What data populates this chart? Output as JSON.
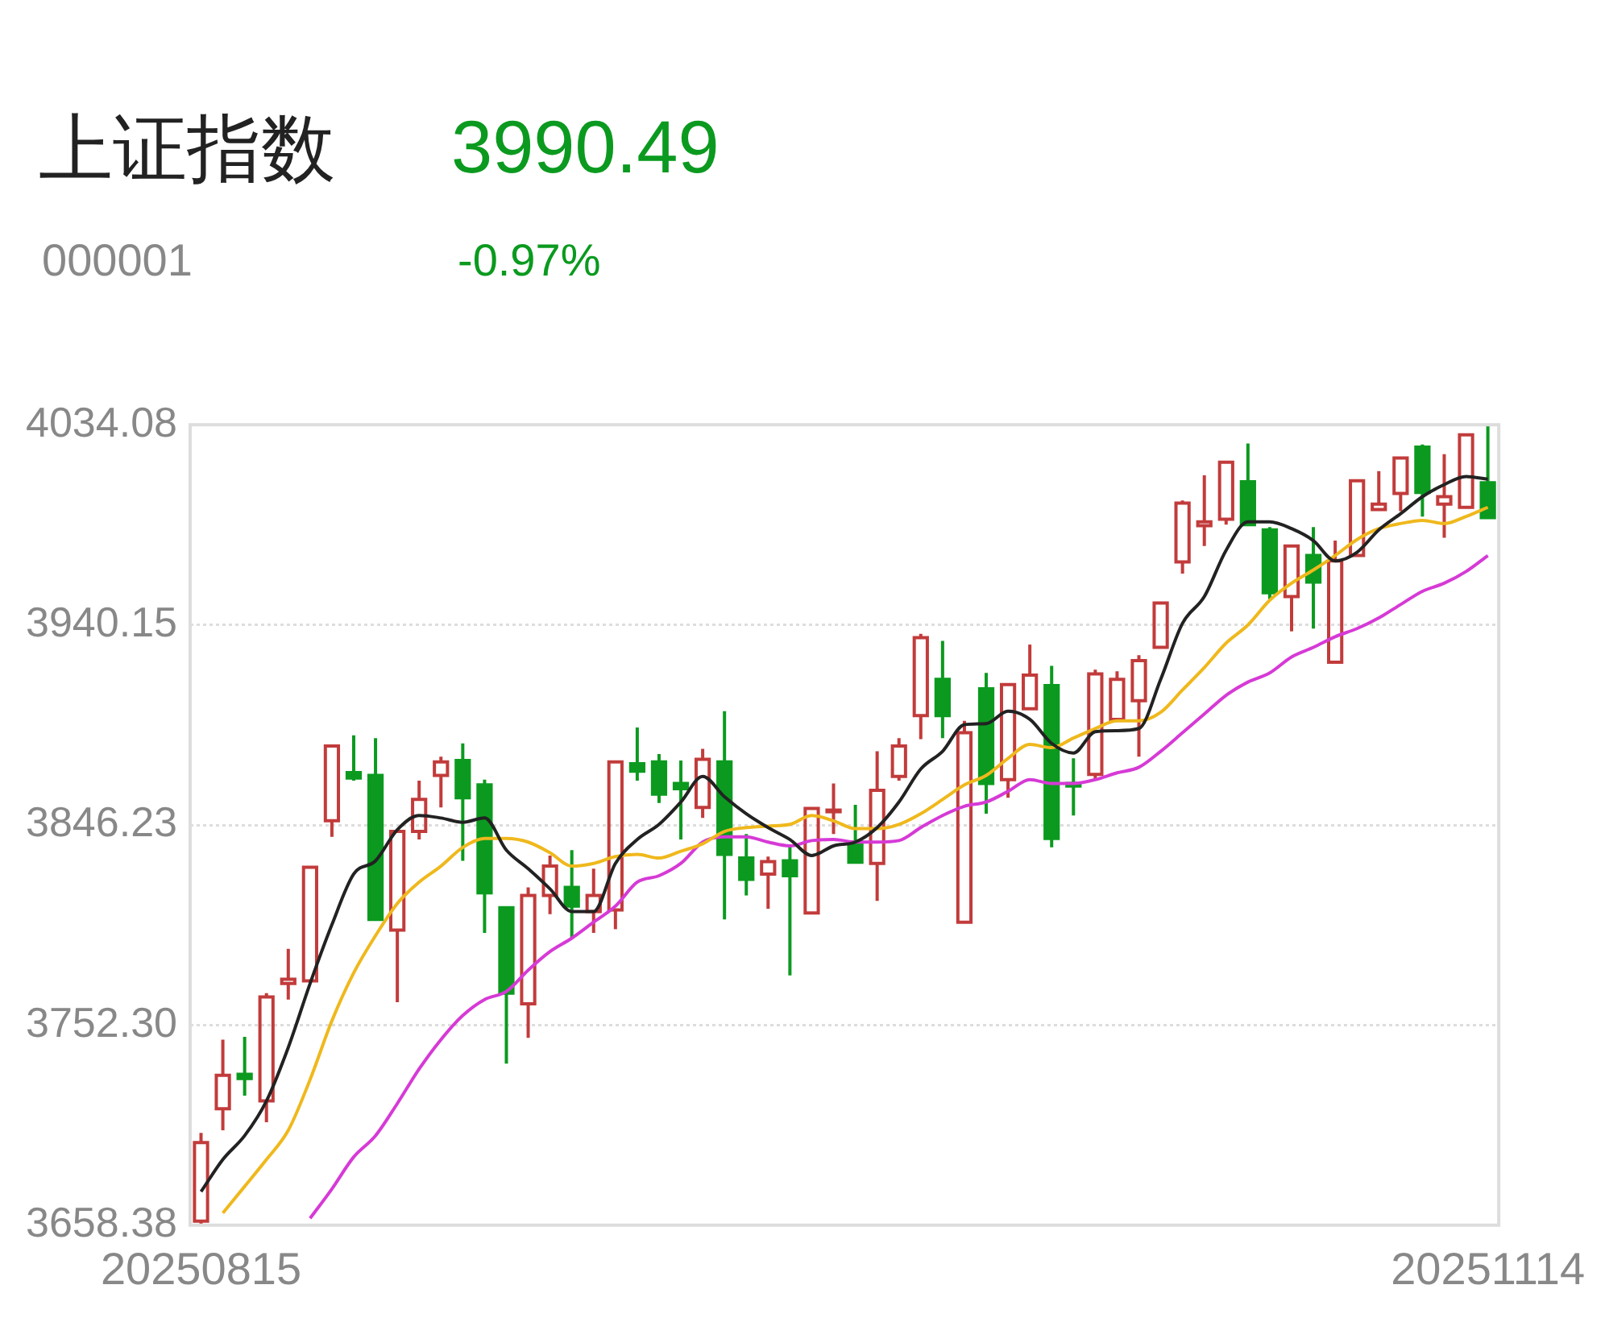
{
  "chart_data": {
    "type": "candlestick",
    "title": "上证指数",
    "subtitle": "000001",
    "annotations": [
      "3990.49",
      "-0.97%"
    ],
    "categories": [
      "20250815",
      null,
      null,
      null,
      null,
      null,
      null,
      null,
      null,
      null,
      null,
      null,
      null,
      null,
      null,
      null,
      null,
      null,
      null,
      null,
      null,
      null,
      null,
      null,
      null,
      null,
      null,
      null,
      null,
      null,
      null,
      null,
      null,
      null,
      null,
      null,
      null,
      null,
      null,
      null,
      null,
      null,
      null,
      null,
      null,
      null,
      null,
      null,
      null,
      null,
      null,
      null,
      null,
      null,
      null,
      null,
      null,
      null,
      null,
      "20251114"
    ],
    "ohlc": [
      [
        3660.3,
        3701.7,
        3659.1,
        3697.2
      ],
      [
        3713.0,
        3745.5,
        3702.9,
        3728.7
      ],
      [
        3729.2,
        3746.8,
        3719.2,
        3727.2
      ],
      [
        3716.7,
        3767.3,
        3706.7,
        3765.5
      ],
      [
        3771.8,
        3788.1,
        3764.3,
        3773.8
      ],
      [
        3773.1,
        3826.9,
        3772.3,
        3826.4
      ],
      [
        3848.2,
        3884.0,
        3840.7,
        3883.3
      ],
      [
        3870.8,
        3888.3,
        3867.0,
        3868.3
      ],
      [
        3869.5,
        3887.0,
        3801.4,
        3801.9
      ],
      [
        3796.9,
        3843.7,
        3763.0,
        3843.2
      ],
      [
        3843.2,
        3867.0,
        3839.4,
        3858.2
      ],
      [
        3869.5,
        3878.3,
        3854.5,
        3875.8
      ],
      [
        3876.5,
        3884.5,
        3829.4,
        3859.0
      ],
      [
        3865.0,
        3867.5,
        3795.6,
        3814.4
      ],
      [
        3807.4,
        3807.9,
        3734.2,
        3767.3
      ],
      [
        3762.3,
        3816.9,
        3746.3,
        3813.1
      ],
      [
        3813.1,
        3831.9,
        3804.4,
        3826.9
      ],
      [
        3816.9,
        3834.4,
        3793.1,
        3808.1
      ],
      [
        3805.6,
        3825.7,
        3795.6,
        3813.1
      ],
      [
        3806.3,
        3875.8,
        3797.3,
        3875.8
      ],
      [
        3875.0,
        3892.0,
        3867.0,
        3871.5
      ],
      [
        3875.8,
        3879.5,
        3856.5,
        3860.7
      ],
      [
        3865.7,
        3876.5,
        3839.4,
        3863.2
      ],
      [
        3854.5,
        3882.0,
        3849.5,
        3877.0
      ],
      [
        3875.8,
        3899.6,
        3801.9,
        3832.4
      ],
      [
        3830.7,
        3842.0,
        3813.1,
        3820.7
      ],
      [
        3823.2,
        3831.4,
        3806.9,
        3829.0
      ],
      [
        3829.4,
        3836.9,
        3775.6,
        3822.4
      ],
      [
        3804.9,
        3854.5,
        3804.4,
        3854.0
      ],
      [
        3852.5,
        3865.7,
        3842.0,
        3853.2
      ],
      [
        3838.2,
        3855.7,
        3828.2,
        3828.7
      ],
      [
        3828.2,
        3880.8,
        3810.6,
        3862.5
      ],
      [
        3869.0,
        3887.0,
        3867.0,
        3883.3
      ],
      [
        3897.6,
        3935.9,
        3886.5,
        3934.1
      ],
      [
        3914.6,
        3932.6,
        3887.0,
        3897.6
      ],
      [
        3800.6,
        3895.1,
        3800.1,
        3889.5
      ],
      [
        3910.1,
        3917.6,
        3851.5,
        3865.7
      ],
      [
        3867.5,
        3912.1,
        3859.0,
        3912.1
      ],
      [
        3900.8,
        3930.9,
        3900.8,
        3916.6
      ],
      [
        3911.6,
        3920.9,
        3835.7,
        3839.9
      ],
      [
        3865.7,
        3877.5,
        3850.7,
        3864.5
      ],
      [
        3870.0,
        3919.1,
        3867.5,
        3917.1
      ],
      [
        3895.8,
        3918.4,
        3894.6,
        3914.6
      ],
      [
        3904.6,
        3925.9,
        3878.3,
        3923.4
      ],
      [
        3929.6,
        3950.9,
        3929.1,
        3950.4
      ],
      [
        3969.7,
        3998.5,
        3964.2,
        3997.3
      ],
      [
        3986.7,
        4010.3,
        3977.2,
        3988.5
      ],
      [
        3989.7,
        4016.5,
        3987.2,
        4016.5
      ],
      [
        4007.3,
        4025.3,
        3986.7,
        3987.2
      ],
      [
        3984.7,
        3986.0,
        3952.2,
        3955.2
      ],
      [
        3953.4,
        3977.2,
        3937.1,
        3977.2
      ],
      [
        3972.7,
        3986.0,
        3938.4,
        3960.2
      ],
      [
        3922.6,
        3979.7,
        3922.6,
        3970.2
      ],
      [
        3972.7,
        4007.8,
        3972.7,
        4007.8
      ],
      [
        3994.3,
        4012.3,
        3994.3,
        3996.8
      ],
      [
        4001.8,
        4018.5,
        3993.5,
        4018.5
      ],
      [
        4023.6,
        4024.8,
        3991.0,
        4002.3
      ],
      [
        3996.8,
        4020.3,
        3981.0,
        4000.3
      ],
      [
        3995.3,
        4029.3,
        3994.8,
        4029.3
      ],
      [
        4006.8,
        4034.0,
        3990.5,
        3990.5
      ]
    ],
    "colors": [
      "#c23b3b",
      "#c23b3b",
      "#0b9a1f",
      "#c23b3b",
      "#c23b3b",
      "#c23b3b",
      "#c23b3b",
      "#0b9a1f",
      "#0b9a1f",
      "#c23b3b",
      "#c23b3b",
      "#c23b3b",
      "#0b9a1f",
      "#0b9a1f",
      "#0b9a1f",
      "#c23b3b",
      "#c23b3b",
      "#0b9a1f",
      "#c23b3b",
      "#c23b3b",
      "#0b9a1f",
      "#0b9a1f",
      "#0b9a1f",
      "#c23b3b",
      "#0b9a1f",
      "#0b9a1f",
      "#c23b3b",
      "#0b9a1f",
      "#c23b3b",
      "#c23b3b",
      "#0b9a1f",
      "#c23b3b",
      "#c23b3b",
      "#c23b3b",
      "#0b9a1f",
      "#c23b3b",
      "#0b9a1f",
      "#c23b3b",
      "#c23b3b",
      "#0b9a1f",
      "#0b9a1f",
      "#c23b3b",
      "#c23b3b",
      "#c23b3b",
      "#c23b3b",
      "#c23b3b",
      "#c23b3b",
      "#c23b3b",
      "#0b9a1f",
      "#0b9a1f",
      "#c23b3b",
      "#0b9a1f",
      "#c23b3b",
      "#c23b3b",
      "#c23b3b",
      "#c23b3b",
      "#0b9a1f",
      "#c23b3b",
      "#c23b3b",
      "#0b9a1f"
    ],
    "series": [
      {
        "type": "line",
        "color": "#222222",
        "values": [
          3674.1,
          3689.2,
          3700.4,
          3716.7,
          3741.8,
          3771.8,
          3799.4,
          3823.2,
          3829.4,
          3844.0,
          3850.7,
          3849.5,
          3847.5,
          3849.5,
          3834.4,
          3825.7,
          3816.2,
          3805.6,
          3805.6,
          3828.2,
          3839.4,
          3846.5,
          3857.0,
          3869.0,
          3859.5,
          3851.5,
          3845.0,
          3839.4,
          3831.9,
          3836.4,
          3838.2,
          3845.0,
          3857.0,
          3872.5,
          3880.8,
          3893.3,
          3893.8,
          3899.6,
          3895.8,
          3884.5,
          3880.0,
          3890.0,
          3890.5,
          3891.5,
          3914.6,
          3940.9,
          3953.4,
          3975.2,
          3988.5,
          3988.5,
          3985.3,
          3979.7,
          3970.2,
          3974.2,
          3984.7,
          3992.3,
          4000.3,
          4006.0,
          4009.8,
          4008.5
        ]
      },
      {
        "type": "line",
        "color": "#efb81c",
        "values": [
          null,
          3664.1,
          3676.6,
          3689.2,
          3702.9,
          3726.7,
          3754.3,
          3776.8,
          3794.3,
          3809.4,
          3819.4,
          3826.9,
          3835.7,
          3839.9,
          3839.9,
          3838.2,
          3833.2,
          3826.9,
          3828.2,
          3831.4,
          3832.4,
          3830.7,
          3833.9,
          3837.4,
          3843.2,
          3845.0,
          3845.7,
          3846.5,
          3850.7,
          3848.2,
          3844.5,
          3844.5,
          3846.5,
          3851.5,
          3858.2,
          3865.0,
          3869.5,
          3877.5,
          3884.0,
          3882.5,
          3887.0,
          3891.5,
          3895.1,
          3895.1,
          3899.1,
          3909.6,
          3920.1,
          3931.6,
          3940.1,
          3951.7,
          3959.7,
          3965.9,
          3972.7,
          3980.2,
          3985.3,
          3987.7,
          3989.2,
          3987.7,
          3991.0,
          3995.3
        ]
      },
      {
        "type": "line",
        "color": "#d63ad6",
        "values": [
          null,
          null,
          null,
          null,
          null,
          3661.6,
          3675.4,
          3690.4,
          3700.4,
          3715.5,
          3731.7,
          3745.5,
          3756.8,
          3764.3,
          3768.1,
          3778.1,
          3786.8,
          3793.1,
          3800.6,
          3808.1,
          3819.4,
          3822.4,
          3828.2,
          3838.2,
          3840.7,
          3840.7,
          3838.2,
          3836.4,
          3838.9,
          3839.4,
          3838.2,
          3838.2,
          3838.9,
          3845.0,
          3850.7,
          3855.0,
          3857.0,
          3862.0,
          3867.5,
          3865.7,
          3865.7,
          3867.5,
          3870.7,
          3873.3,
          3880.8,
          3889.5,
          3898.3,
          3907.1,
          3913.3,
          3917.6,
          3925.1,
          3929.6,
          3934.6,
          3938.4,
          3943.4,
          3949.7,
          3955.9,
          3959.7,
          3965.2,
          3972.7
        ]
      }
    ],
    "ylim": [
      3658.38,
      4034.08
    ],
    "yticks": [
      4034.08,
      3940.15,
      3846.23,
      {
        "value": 3752.3,
        "label": "3752.30"
      },
      3658.38
    ],
    "grid": "y",
    "legend": false,
    "marker": "none"
  }
}
